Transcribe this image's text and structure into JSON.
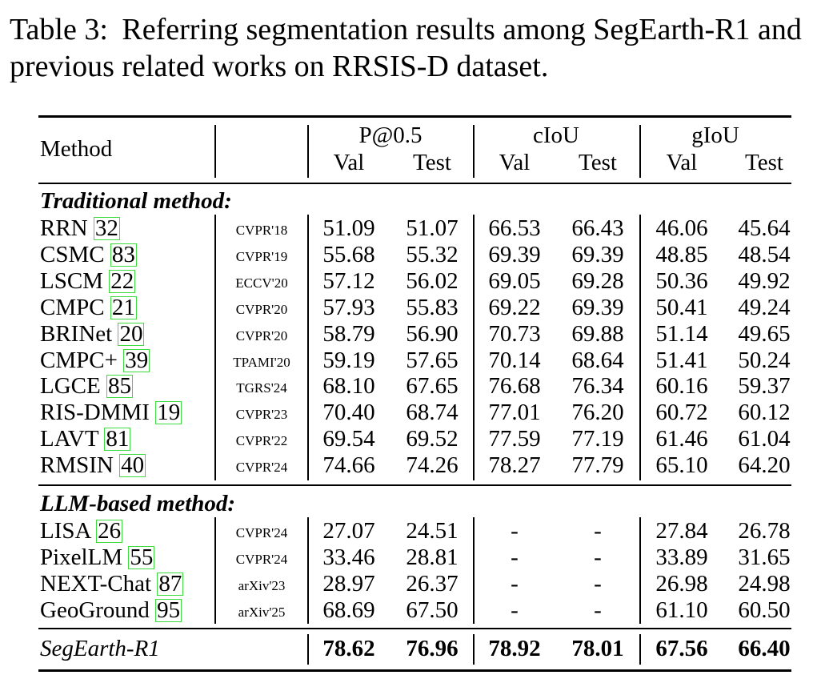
{
  "caption": {
    "label": "Table 3:",
    "text": "Referring segmentation results among SegEarth-R1 and previous related works on RRSIS-D dataset."
  },
  "header": {
    "method": "Method",
    "groups": [
      "P@0.5",
      "cIoU",
      "gIoU"
    ],
    "sub": [
      "Val",
      "Test",
      "Val",
      "Test",
      "Val",
      "Test"
    ]
  },
  "sections": [
    {
      "title": "Traditional method:",
      "rows": [
        {
          "name": "RRN",
          "ref": "32",
          "venue": "CVPR'18",
          "values": [
            "51.09",
            "51.07",
            "66.53",
            "66.43",
            "46.06",
            "45.64"
          ]
        },
        {
          "name": "CSMC",
          "ref": "83",
          "venue": "CVPR'19",
          "values": [
            "55.68",
            "55.32",
            "69.39",
            "69.39",
            "48.85",
            "48.54"
          ]
        },
        {
          "name": "LSCM",
          "ref": "22",
          "venue": "ECCV'20",
          "values": [
            "57.12",
            "56.02",
            "69.05",
            "69.28",
            "50.36",
            "49.92"
          ]
        },
        {
          "name": "CMPC",
          "ref": "21",
          "venue": "CVPR'20",
          "values": [
            "57.93",
            "55.83",
            "69.22",
            "69.39",
            "50.41",
            "49.24"
          ]
        },
        {
          "name": "BRINet",
          "ref": "20",
          "venue": "CVPR'20",
          "values": [
            "58.79",
            "56.90",
            "70.73",
            "69.88",
            "51.14",
            "49.65"
          ]
        },
        {
          "name": "CMPC+",
          "ref": "39",
          "venue": "TPAMI'20",
          "values": [
            "59.19",
            "57.65",
            "70.14",
            "68.64",
            "51.41",
            "50.24"
          ]
        },
        {
          "name": "LGCE",
          "ref": "85",
          "venue": "TGRS'24",
          "values": [
            "68.10",
            "67.65",
            "76.68",
            "76.34",
            "60.16",
            "59.37"
          ]
        },
        {
          "name": "RIS-DMMI",
          "ref": "19",
          "venue": "CVPR'23",
          "values": [
            "70.40",
            "68.74",
            "77.01",
            "76.20",
            "60.72",
            "60.12"
          ]
        },
        {
          "name": "LAVT",
          "ref": "81",
          "venue": "CVPR'22",
          "values": [
            "69.54",
            "69.52",
            "77.59",
            "77.19",
            "61.46",
            "61.04"
          ]
        },
        {
          "name": "RMSIN",
          "ref": "40",
          "venue": "CVPR'24",
          "values": [
            "74.66",
            "74.26",
            "78.27",
            "77.79",
            "65.10",
            "64.20"
          ]
        }
      ]
    },
    {
      "title": "LLM-based method:",
      "rows": [
        {
          "name": "LISA",
          "ref": "26",
          "venue": "CVPR'24",
          "values": [
            "27.07",
            "24.51",
            "-",
            "-",
            "27.84",
            "26.78"
          ]
        },
        {
          "name": "PixelLM",
          "ref": "55",
          "venue": "CVPR'24",
          "values": [
            "33.46",
            "28.81",
            "-",
            "-",
            "33.89",
            "31.65"
          ]
        },
        {
          "name": "NEXT-Chat",
          "ref": "87",
          "venue": "arXiv'23",
          "values": [
            "28.97",
            "26.37",
            "-",
            "-",
            "26.98",
            "24.98"
          ]
        },
        {
          "name": "GeoGround",
          "ref": "95",
          "venue": "arXiv'25",
          "values": [
            "68.69",
            "67.50",
            "-",
            "-",
            "61.10",
            "60.50"
          ]
        }
      ]
    }
  ],
  "final": {
    "name": "SegEarth-R1",
    "values": [
      "78.62",
      "76.96",
      "78.92",
      "78.01",
      "67.56",
      "66.40"
    ]
  }
}
